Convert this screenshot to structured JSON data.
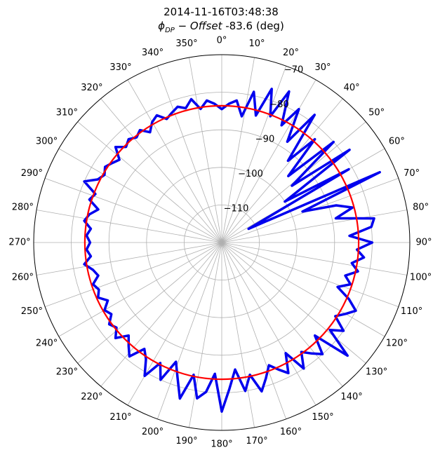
{
  "chart_data": {
    "type": "line",
    "projection": "polar",
    "title": "2014-11-16T03:48:38",
    "subtitle_math": "ϕ",
    "subtitle_sub": "DP",
    "subtitle_mid": " − ",
    "subtitle_italic": "Offset",
    "subtitle_rest": " -83.6 (deg)",
    "theta_direction": "clockwise",
    "theta_zero": "top",
    "theta_ticks": [
      "0°",
      "10°",
      "20°",
      "30°",
      "40°",
      "50°",
      "60°",
      "70°",
      "80°",
      "90°",
      "100°",
      "110°",
      "120°",
      "130°",
      "140°",
      "150°",
      "160°",
      "170°",
      "180°",
      "190°",
      "200°",
      "210°",
      "220°",
      "230°",
      "240°",
      "250°",
      "260°",
      "270°",
      "280°",
      "290°",
      "300°",
      "310°",
      "320°",
      "330°",
      "340°",
      "350°"
    ],
    "r_ticks": [
      -110,
      -100,
      -90,
      -80,
      -70
    ],
    "r_tick_labels": [
      "−110",
      "−100",
      "−90",
      "−80",
      "−70"
    ],
    "r_label_angle_deg": 22.5,
    "rlim": [
      -120,
      -70
    ],
    "grid": true,
    "series": [
      {
        "color": "#0000ee",
        "theta_deg": [
          0,
          3,
          6,
          9,
          12,
          15,
          18,
          21,
          24,
          27,
          30,
          33,
          36,
          39,
          42,
          45,
          48,
          51,
          54,
          57,
          60,
          63,
          66,
          69,
          72,
          75,
          78,
          81,
          84,
          87,
          90,
          93,
          96,
          99,
          102,
          105,
          108,
          111,
          114,
          117,
          120,
          123,
          126,
          129,
          132,
          135,
          138,
          141,
          144,
          147,
          150,
          153,
          156,
          159,
          162,
          165,
          168,
          171,
          174,
          177,
          180,
          183,
          186,
          189,
          192,
          195,
          198,
          201,
          204,
          207,
          210,
          213,
          216,
          219,
          222,
          225,
          228,
          231,
          234,
          237,
          240,
          243,
          246,
          249,
          252,
          255,
          258,
          261,
          264,
          267,
          270,
          273,
          276,
          279,
          282,
          285,
          288,
          291,
          294,
          297,
          300,
          303,
          306,
          309,
          312,
          315,
          318,
          321,
          324,
          327,
          330,
          333,
          336,
          339,
          342,
          345,
          348,
          351,
          354,
          357
        ],
        "r": [
          -84.5,
          -83,
          -82,
          -86,
          -79,
          -85,
          -77,
          -84,
          -76,
          -85,
          -79,
          -88,
          -78,
          -92,
          -83,
          -95,
          -80,
          -96,
          -78,
          -100,
          -81,
          -112,
          -74,
          -97,
          -88,
          -84,
          -89,
          -79,
          -80,
          -86,
          -80,
          -84,
          -82,
          -85,
          -83,
          -86,
          -84,
          -87,
          -83,
          -80,
          -82,
          -84,
          -80,
          -83,
          -75,
          -85,
          -80,
          -82,
          -84,
          -80,
          -86,
          -81,
          -83,
          -85,
          -82,
          -79,
          -84,
          -80,
          -86,
          -81,
          -75,
          -85,
          -80,
          -78,
          -84,
          -77,
          -82,
          -86,
          -80,
          -84,
          -79,
          -83,
          -85,
          -81,
          -83,
          -85,
          -82,
          -84,
          -83,
          -85,
          -84,
          -86,
          -84,
          -85,
          -84,
          -86,
          -85,
          -83,
          -85,
          -84,
          -85,
          -84,
          -85,
          -83,
          -84,
          -86,
          -83,
          -84,
          -80,
          -83,
          -84,
          -83,
          -84,
          -85,
          -82,
          -84,
          -83,
          -84,
          -83,
          -85,
          -83,
          -82,
          -84,
          -83,
          -82,
          -83,
          -81,
          -84,
          -82,
          -83
        ]
      },
      {
        "color": "#ff0000",
        "theta_deg": [
          0,
          360
        ],
        "r": [
          -83.6,
          -83.6
        ]
      }
    ]
  }
}
